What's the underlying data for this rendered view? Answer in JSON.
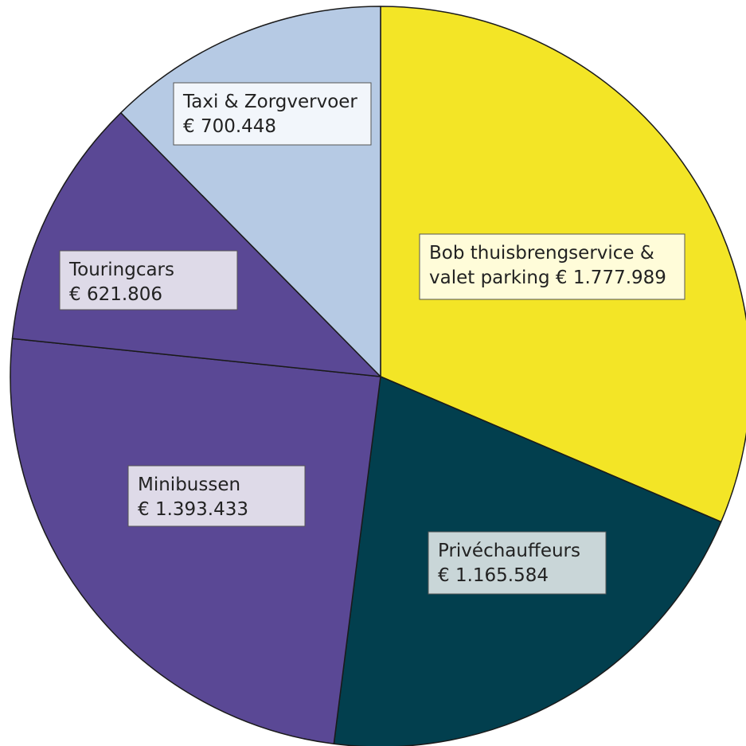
{
  "chart_data": {
    "type": "pie",
    "title": "",
    "start_angle_deg": 0,
    "direction": "clockwise",
    "legend": "none",
    "slices": [
      {
        "name": "Bob thuisbrengservice & valet parking",
        "value": 1777989,
        "value_label": "€ 1.777.989",
        "label_lines": [
          "Bob thuisbrengservice &",
          "valet parking € 1.777.989"
        ],
        "color": "#F3E526",
        "label_bg": "#FFFCD9"
      },
      {
        "name": "Privéchauffeurs",
        "value": 1165584,
        "value_label": "€ 1.165.584",
        "label_lines": [
          "Privéchauffeurs",
          "€ 1.165.584"
        ],
        "color": "#023F4E",
        "label_bg": "#C9D6D8"
      },
      {
        "name": "Minibussen",
        "value": 1393433,
        "value_label": "€ 1.393.433",
        "label_lines": [
          "Minibussen",
          "€ 1.393.433"
        ],
        "color": "#5A4895",
        "label_bg": "#DEDAE8"
      },
      {
        "name": "Touringcars",
        "value": 621806,
        "value_label": "€ 621.806",
        "label_lines": [
          "Touringcars",
          "€ 621.806"
        ],
        "color": "#5A4895",
        "label_bg": "#DEDAE8"
      },
      {
        "name": "Taxi & Zorgvervoer",
        "value": 700448,
        "value_label": "€ 700.448",
        "label_lines": [
          "Taxi & Zorgvervoer",
          "€ 700.448"
        ],
        "color": "#B6CAE4",
        "label_bg": "#F2F6FB"
      }
    ]
  }
}
